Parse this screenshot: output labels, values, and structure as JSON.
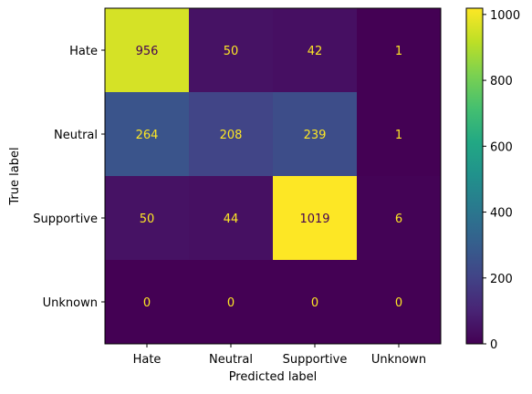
{
  "chart_data": {
    "type": "heatmap",
    "title": "",
    "xlabel": "Predicted label",
    "ylabel": "True label",
    "x_categories": [
      "Hate",
      "Neutral",
      "Supportive",
      "Unknown"
    ],
    "y_categories": [
      "Hate",
      "Neutral",
      "Supportive",
      "Unknown"
    ],
    "matrix": [
      [
        956,
        50,
        42,
        1
      ],
      [
        264,
        208,
        239,
        1
      ],
      [
        50,
        44,
        1019,
        6
      ],
      [
        0,
        0,
        0,
        0
      ]
    ],
    "colormap": "viridis",
    "value_range": [
      0,
      1019
    ],
    "colorbar": {
      "ticks": [
        0,
        200,
        400,
        600,
        800,
        1000
      ],
      "tick_labels": [
        "0",
        "200",
        "400",
        "600",
        "800",
        "1000"
      ]
    },
    "text_colors": {
      "low_value": "#fde725",
      "high_value": "#440154"
    },
    "grid": false
  }
}
